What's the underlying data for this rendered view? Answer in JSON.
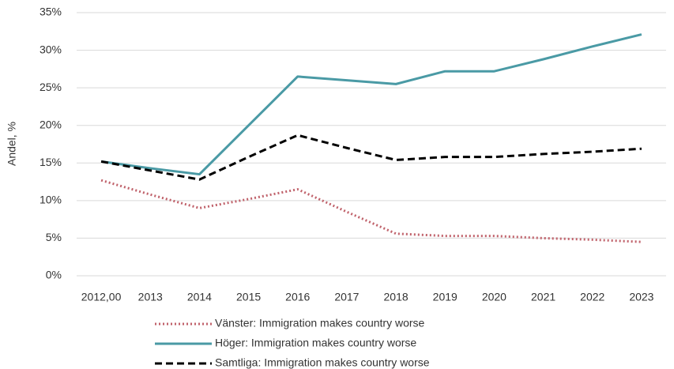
{
  "chart_data": {
    "type": "line",
    "y_label": "Andel, %",
    "categories": [
      "2012,00",
      "2013",
      "2014",
      "2015",
      "2016",
      "2017",
      "2018",
      "2019",
      "2020",
      "2021",
      "2022",
      "2023"
    ],
    "series": [
      {
        "name": "Vänster: Immigration makes country worse",
        "color": "#c0626b",
        "style": "dotted",
        "values": [
          12.7,
          10.8,
          9.0,
          10.2,
          11.5,
          8.5,
          5.6,
          5.3,
          5.3,
          5.0,
          4.8,
          4.5
        ]
      },
      {
        "name": "Höger: Immigration makes country worse",
        "color": "#4a9aa5",
        "style": "solid",
        "values": [
          15.2,
          14.3,
          13.5,
          20.0,
          26.5,
          26.0,
          25.5,
          27.2,
          27.2,
          28.8,
          30.5,
          32.1
        ]
      },
      {
        "name": "Samtliga:  Immigration makes country worse",
        "color": "#000000",
        "style": "dashed",
        "values": [
          15.2,
          14.0,
          12.8,
          15.8,
          18.7,
          17.0,
          15.4,
          15.8,
          15.8,
          16.2,
          16.5,
          16.9
        ]
      }
    ],
    "ylim": [
      0,
      35
    ],
    "yticks": [
      {
        "value": 0,
        "label": "0%"
      },
      {
        "value": 5,
        "label": "5%"
      },
      {
        "value": 10,
        "label": "10%"
      },
      {
        "value": 15,
        "label": "15%"
      },
      {
        "value": 20,
        "label": "20%"
      },
      {
        "value": 25,
        "label": "25%"
      },
      {
        "value": 30,
        "label": "30%"
      },
      {
        "value": 35,
        "label": "35%"
      }
    ],
    "grid": true,
    "legend": "bottom"
  }
}
